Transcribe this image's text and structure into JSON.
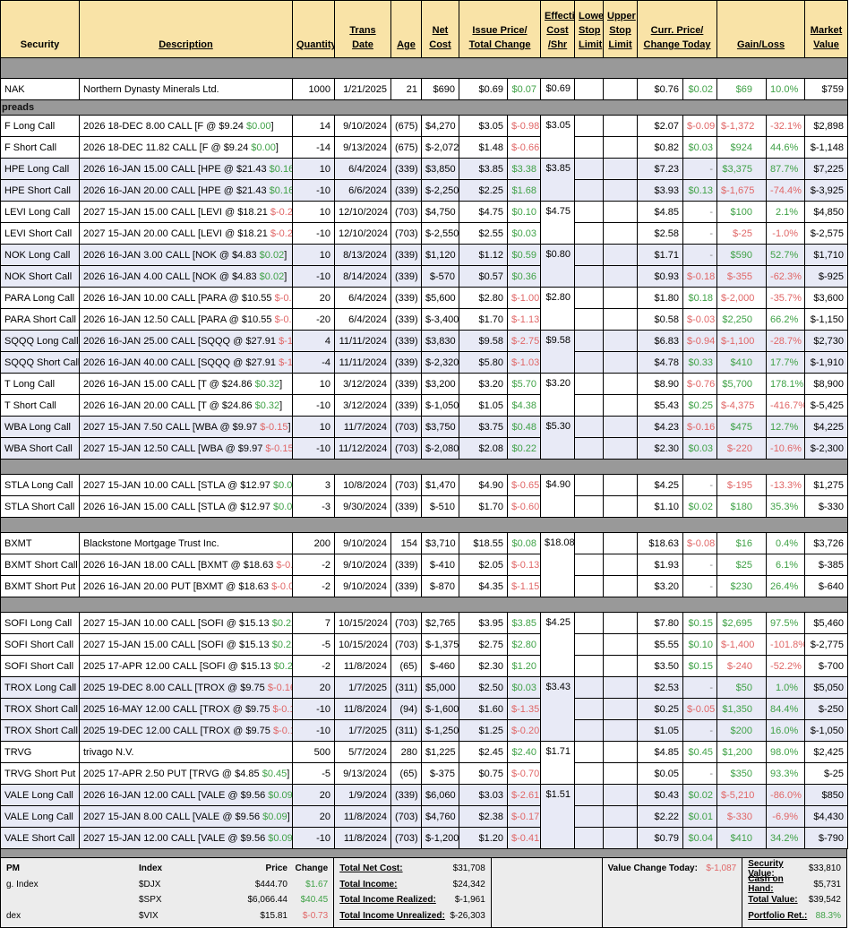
{
  "colors": {
    "header_bg": "#f9e3a7",
    "row_alt_bg": "#e8eaf6",
    "separator_bg": "#999999",
    "positive": "#3fa146",
    "negative": "#e06666",
    "footer_bg": "#ececec"
  },
  "header": [
    {
      "l": "Security",
      "c": 1,
      "u": false
    },
    {
      "l": "Description",
      "c": 1,
      "u": true
    },
    {
      "l": "Quantity",
      "c": 1,
      "u": true
    },
    {
      "l": "Trans\nDate",
      "c": 1,
      "u": true
    },
    {
      "l": "Age",
      "c": 1,
      "u": true
    },
    {
      "l": "Net\nCost",
      "c": 1,
      "u": true
    },
    {
      "l": "Issue Price/\nTotal Change",
      "c": 2,
      "u": true
    },
    {
      "l": "Effective\nCost\n/Shr",
      "c": 1,
      "u": true
    },
    {
      "l": "Lower\nStop\nLimit",
      "c": 1,
      "u": true
    },
    {
      "l": "Upper\nStop\nLimit",
      "c": 1,
      "u": true
    },
    {
      "l": "Curr. Price/\nChange Today",
      "c": 2,
      "u": true
    },
    {
      "l": "Gain/Loss",
      "c": 2,
      "u": true
    },
    {
      "l": "Market\nValue",
      "c": 1,
      "u": true
    }
  ],
  "rows": [
    {
      "k": "sep",
      "h": 22
    },
    {
      "k": "r",
      "sec": "NAK",
      "d": "Northern Dynasty Minerals Ltd.",
      "q": "1000",
      "dt": "1/21/2025",
      "age": "21",
      "net": "$690",
      "ip": "$0.69",
      "tc": "$0.07",
      "tcs": "p",
      "eff": "$0.69",
      "effspan": 1,
      "cp": "$0.76",
      "ct": "$0.02",
      "cts": "p",
      "g": "$69",
      "gs": "p",
      "pct": "10.0%",
      "mv": "$759",
      "alt": false
    },
    {
      "k": "band",
      "h": 16,
      "label": "preads"
    },
    {
      "k": "r",
      "sec": "F Long Call",
      "d": "2026 18-DEC 8.00 CALL [F @ $9.24 ",
      "dc": "$0.00",
      "dcs": "p",
      "q": "14",
      "dt": "9/10/2024",
      "age": "(675)",
      "net": "$4,270",
      "ip": "$3.05",
      "tc": "$-0.98",
      "tcs": "n",
      "eff": "$3.05",
      "effspan": 2,
      "cp": "$2.07",
      "ct": "$-0.09",
      "cts": "n",
      "g": "$-1,372",
      "gs": "n",
      "pct": "-32.1%",
      "mv": "$2,898",
      "alt": false
    },
    {
      "k": "r",
      "sec": "F Short Call",
      "d": "2026 18-DEC 11.82 CALL [F @ $9.24 ",
      "dc": "$0.00",
      "dcs": "p",
      "q": "-14",
      "dt": "9/13/2024",
      "age": "(675)",
      "net": "$-2,072",
      "ip": "$1.48",
      "tc": "$-0.66",
      "tcs": "n",
      "cp": "$0.82",
      "ct": "$0.03",
      "cts": "p",
      "g": "$924",
      "gs": "p",
      "pct": "44.6%",
      "mv": "$-1,148",
      "alt": false
    },
    {
      "k": "r",
      "sec": "HPE Long Call",
      "d": "2026 16-JAN 15.00 CALL [HPE @ $21.43 ",
      "dc": "$0.16",
      "dcs": "p",
      "q": "10",
      "dt": "6/4/2024",
      "age": "(339)",
      "net": "$3,850",
      "ip": "$3.85",
      "tc": "$3.38",
      "tcs": "p",
      "eff": "$3.85",
      "effspan": 2,
      "cp": "$7.23",
      "ct": "-",
      "cts": "d",
      "g": "$3,375",
      "gs": "p",
      "pct": "87.7%",
      "mv": "$7,225",
      "alt": true
    },
    {
      "k": "r",
      "sec": "HPE Short Call",
      "d": "2026 16-JAN 20.00 CALL [HPE @ $21.43 ",
      "dc": "$0.16",
      "dcs": "p",
      "q": "-10",
      "dt": "6/6/2024",
      "age": "(339)",
      "net": "$-2,250",
      "ip": "$2.25",
      "tc": "$1.68",
      "tcs": "p",
      "cp": "$3.93",
      "ct": "$0.13",
      "cts": "p",
      "g": "$-1,675",
      "gs": "n",
      "pct": "-74.4%",
      "mv": "$-3,925",
      "alt": true
    },
    {
      "k": "r",
      "sec": "LEVI Long Call",
      "d": "2027 15-JAN 15.00 CALL [LEVI @ $18.21 ",
      "dc": "$-0.23",
      "dcs": "n",
      "q": "10",
      "dt": "12/10/2024",
      "age": "(703)",
      "net": "$4,750",
      "ip": "$4.75",
      "tc": "$0.10",
      "tcs": "p",
      "eff": "$4.75",
      "effspan": 2,
      "cp": "$4.85",
      "ct": "-",
      "cts": "d",
      "g": "$100",
      "gs": "p",
      "pct": "2.1%",
      "mv": "$4,850",
      "alt": false
    },
    {
      "k": "r",
      "sec": "LEVI Short Call",
      "d": "2027 15-JAN 20.00 CALL [LEVI @ $18.21 ",
      "dc": "$-0.23",
      "dcs": "n",
      "q": "-10",
      "dt": "12/10/2024",
      "age": "(703)",
      "net": "$-2,550",
      "ip": "$2.55",
      "tc": "$0.03",
      "tcs": "p",
      "cp": "$2.58",
      "ct": "-",
      "cts": "d",
      "g": "$-25",
      "gs": "n",
      "pct": "-1.0%",
      "mv": "$-2,575",
      "alt": false
    },
    {
      "k": "r",
      "sec": "NOK Long Call",
      "d": "2026 16-JAN 3.00 CALL [NOK @ $4.83 ",
      "dc": "$0.02",
      "dcs": "p",
      "q": "10",
      "dt": "8/13/2024",
      "age": "(339)",
      "net": "$1,120",
      "ip": "$1.12",
      "tc": "$0.59",
      "tcs": "p",
      "eff": "$0.80",
      "effspan": 2,
      "cp": "$1.71",
      "ct": "-",
      "cts": "d",
      "g": "$590",
      "gs": "p",
      "pct": "52.7%",
      "mv": "$1,710",
      "alt": true
    },
    {
      "k": "r",
      "sec": "NOK Short Call",
      "d": "2026 16-JAN 4.00 CALL [NOK @ $4.83 ",
      "dc": "$0.02",
      "dcs": "p",
      "q": "-10",
      "dt": "8/14/2024",
      "age": "(339)",
      "net": "$-570",
      "ip": "$0.57",
      "tc": "$0.36",
      "tcs": "p",
      "cp": "$0.93",
      "ct": "$-0.18",
      "cts": "n",
      "g": "$-355",
      "gs": "n",
      "pct": "-62.3%",
      "mv": "$-925",
      "alt": true
    },
    {
      "k": "r",
      "sec": "PARA Long Call",
      "d": "2026 16-JAN 10.00 CALL [PARA @ $10.55 ",
      "dc": "$-0.08",
      "dcs": "n",
      "q": "20",
      "dt": "6/4/2024",
      "age": "(339)",
      "net": "$5,600",
      "ip": "$2.80",
      "tc": "$-1.00",
      "tcs": "n",
      "eff": "$2.80",
      "effspan": 2,
      "cp": "$1.80",
      "ct": "$0.18",
      "cts": "p",
      "g": "$-2,000",
      "gs": "n",
      "pct": "-35.7%",
      "mv": "$3,600",
      "alt": false
    },
    {
      "k": "r",
      "sec": "PARA Short Call",
      "d": "2026 16-JAN 12.50 CALL [PARA @ $10.55 ",
      "dc": "$-0.08",
      "dcs": "n",
      "q": "-20",
      "dt": "6/4/2024",
      "age": "(339)",
      "net": "$-3,400",
      "ip": "$1.70",
      "tc": "$-1.13",
      "tcs": "n",
      "cp": "$0.58",
      "ct": "$-0.03",
      "cts": "n",
      "g": "$2,250",
      "gs": "p",
      "pct": "66.2%",
      "mv": "$-1,150",
      "alt": false
    },
    {
      "k": "r",
      "sec": "SQQQ Long Call",
      "d": "2026 16-JAN 25.00 CALL [SQQQ @ $27.91 ",
      "dc": "$-1.02",
      "dcs": "n",
      "q": "4",
      "dt": "11/11/2024",
      "age": "(339)",
      "net": "$3,830",
      "ip": "$9.58",
      "tc": "$-2.75",
      "tcs": "n",
      "eff": "$9.58",
      "effspan": 2,
      "cp": "$6.83",
      "ct": "$-0.94",
      "cts": "n",
      "g": "$-1,100",
      "gs": "n",
      "pct": "-28.7%",
      "mv": "$2,730",
      "alt": true
    },
    {
      "k": "r",
      "sec": "SQQQ Short Call",
      "d": "2026 16-JAN 40.00 CALL [SQQQ @ $27.91 ",
      "dc": "$-1.02",
      "dcs": "n",
      "q": "-4",
      "dt": "11/11/2024",
      "age": "(339)",
      "net": "$-2,320",
      "ip": "$5.80",
      "tc": "$-1.03",
      "tcs": "n",
      "cp": "$4.78",
      "ct": "$0.33",
      "cts": "p",
      "g": "$410",
      "gs": "p",
      "pct": "17.7%",
      "mv": "$-1,910",
      "alt": true
    },
    {
      "k": "r",
      "sec": "T Long Call",
      "d": "2026 16-JAN 15.00 CALL [T @ $24.86 ",
      "dc": "$0.32",
      "dcs": "p",
      "q": "10",
      "dt": "3/12/2024",
      "age": "(339)",
      "net": "$3,200",
      "ip": "$3.20",
      "tc": "$5.70",
      "tcs": "p",
      "eff": "$3.20",
      "effspan": 2,
      "cp": "$8.90",
      "ct": "$-0.76",
      "cts": "n",
      "g": "$5,700",
      "gs": "p",
      "pct": "178.1%",
      "mv": "$8,900",
      "alt": false
    },
    {
      "k": "r",
      "sec": "T Short Call",
      "d": "2026 16-JAN 20.00 CALL [T @ $24.86 ",
      "dc": "$0.32",
      "dcs": "p",
      "q": "-10",
      "dt": "3/12/2024",
      "age": "(339)",
      "net": "$-1,050",
      "ip": "$1.05",
      "tc": "$4.38",
      "tcs": "p",
      "cp": "$5.43",
      "ct": "$0.25",
      "cts": "p",
      "g": "$-4,375",
      "gs": "n",
      "pct": "-416.7%",
      "mv": "$-5,425",
      "alt": false
    },
    {
      "k": "r",
      "sec": "WBA Long Call",
      "d": "2027 15-JAN 7.50 CALL [WBA @ $9.97 ",
      "dc": "$-0.15",
      "dcs": "n",
      "q": "10",
      "dt": "11/7/2024",
      "age": "(703)",
      "net": "$3,750",
      "ip": "$3.75",
      "tc": "$0.48",
      "tcs": "p",
      "eff": "$5.30",
      "effspan": 2,
      "cp": "$4.23",
      "ct": "$-0.16",
      "cts": "n",
      "g": "$475",
      "gs": "p",
      "pct": "12.7%",
      "mv": "$4,225",
      "alt": true
    },
    {
      "k": "r",
      "sec": "WBA Short Call",
      "d": "2027 15-JAN 12.50 CALL [WBA @ $9.97 ",
      "dc": "$-0.15",
      "dcs": "n",
      "q": "-10",
      "dt": "11/12/2024",
      "age": "(703)",
      "net": "$-2,080",
      "ip": "$2.08",
      "tc": "$0.22",
      "tcs": "p",
      "cp": "$2.30",
      "ct": "$0.03",
      "cts": "p",
      "g": "$-220",
      "gs": "n",
      "pct": "-10.6%",
      "mv": "$-2,300",
      "alt": true
    },
    {
      "k": "sep",
      "h": 16
    },
    {
      "k": "r",
      "sec": "STLA Long Call",
      "d": "2027 15-JAN 10.00 CALL [STLA @ $12.97 ",
      "dc": "$0.03",
      "dcs": "p",
      "q": "3",
      "dt": "10/8/2024",
      "age": "(703)",
      "net": "$1,470",
      "ip": "$4.90",
      "tc": "$-0.65",
      "tcs": "n",
      "eff": "$4.90",
      "effspan": 2,
      "cp": "$4.25",
      "ct": "-",
      "cts": "d",
      "g": "$-195",
      "gs": "n",
      "pct": "-13.3%",
      "mv": "$1,275",
      "alt": false
    },
    {
      "k": "r",
      "sec": "STLA Short Call",
      "d": "2026 16-JAN 15.00 CALL [STLA @ $12.97 ",
      "dc": "$0.03",
      "dcs": "p",
      "q": "-3",
      "dt": "9/30/2024",
      "age": "(339)",
      "net": "$-510",
      "ip": "$1.70",
      "tc": "$-0.60",
      "tcs": "n",
      "cp": "$1.10",
      "ct": "$0.02",
      "cts": "p",
      "g": "$180",
      "gs": "p",
      "pct": "35.3%",
      "mv": "$-330",
      "alt": false
    },
    {
      "k": "sep",
      "h": 16
    },
    {
      "k": "r",
      "sec": "BXMT",
      "d": "Blackstone Mortgage Trust Inc.",
      "q": "200",
      "dt": "9/10/2024",
      "age": "154",
      "net": "$3,710",
      "ip": "$18.55",
      "tc": "$0.08",
      "tcs": "p",
      "eff": "$18.08",
      "effspan": 3,
      "cp": "$18.63",
      "ct": "$-0.08",
      "cts": "n",
      "g": "$16",
      "gs": "p",
      "pct": "0.4%",
      "mv": "$3,726",
      "alt": false
    },
    {
      "k": "r",
      "sec": "BXMT Short Call",
      "d": "2026 16-JAN 18.00 CALL [BXMT @ $18.63 ",
      "dc": "$-0.08",
      "dcs": "n",
      "q": "-2",
      "dt": "9/10/2024",
      "age": "(339)",
      "net": "$-410",
      "ip": "$2.05",
      "tc": "$-0.13",
      "tcs": "n",
      "cp": "$1.93",
      "ct": "-",
      "cts": "d",
      "g": "$25",
      "gs": "p",
      "pct": "6.1%",
      "mv": "$-385",
      "alt": false
    },
    {
      "k": "r",
      "sec": "BXMT Short Put",
      "d": "2026 16-JAN 20.00 PUT [BXMT @ $18.63 ",
      "dc": "$-0.08",
      "dcs": "n",
      "q": "-2",
      "dt": "9/10/2024",
      "age": "(339)",
      "net": "$-870",
      "ip": "$4.35",
      "tc": "$-1.15",
      "tcs": "n",
      "cp": "$3.20",
      "ct": "-",
      "cts": "d",
      "g": "$230",
      "gs": "p",
      "pct": "26.4%",
      "mv": "$-640",
      "alt": false
    },
    {
      "k": "sep",
      "h": 16
    },
    {
      "k": "r",
      "sec": "SOFI Long Call",
      "d": "2027 15-JAN 10.00 CALL [SOFI @ $15.13 ",
      "dc": "$0.22",
      "dcs": "p",
      "q": "7",
      "dt": "10/15/2024",
      "age": "(703)",
      "net": "$2,765",
      "ip": "$3.95",
      "tc": "$3.85",
      "tcs": "p",
      "eff": "$4.25",
      "effspan": 3,
      "cp": "$7.80",
      "ct": "$0.15",
      "cts": "p",
      "g": "$2,695",
      "gs": "p",
      "pct": "97.5%",
      "mv": "$5,460",
      "alt": false
    },
    {
      "k": "r",
      "sec": "SOFI Short Call",
      "d": "2027 15-JAN 15.00 CALL [SOFI @ $15.13 ",
      "dc": "$0.22",
      "dcs": "p",
      "q": "-5",
      "dt": "10/15/2024",
      "age": "(703)",
      "net": "$-1,375",
      "ip": "$2.75",
      "tc": "$2.80",
      "tcs": "p",
      "cp": "$5.55",
      "ct": "$0.10",
      "cts": "p",
      "g": "$-1,400",
      "gs": "n",
      "pct": "-101.8%",
      "mv": "$-2,775",
      "alt": false
    },
    {
      "k": "r",
      "sec": "SOFI Short Call",
      "d": "2025 17-APR 12.00 CALL [SOFI @ $15.13 ",
      "dc": "$0.22",
      "dcs": "p",
      "q": "-2",
      "dt": "11/8/2024",
      "age": "(65)",
      "net": "$-460",
      "ip": "$2.30",
      "tc": "$1.20",
      "tcs": "p",
      "cp": "$3.50",
      "ct": "$0.15",
      "cts": "p",
      "g": "$-240",
      "gs": "n",
      "pct": "-52.2%",
      "mv": "$-700",
      "alt": false
    },
    {
      "k": "r",
      "sec": "TROX Long Call",
      "d": "2025 19-DEC 8.00 CALL [TROX @ $9.75 ",
      "dc": "$-0.16",
      "dcs": "n",
      "q": "20",
      "dt": "1/7/2025",
      "age": "(311)",
      "net": "$5,000",
      "ip": "$2.50",
      "tc": "$0.03",
      "tcs": "p",
      "eff": "$3.43",
      "effspan": 3,
      "cp": "$2.53",
      "ct": "-",
      "cts": "d",
      "g": "$50",
      "gs": "p",
      "pct": "1.0%",
      "mv": "$5,050",
      "alt": true
    },
    {
      "k": "r",
      "sec": "TROX Short Call",
      "d": "2025 16-MAY 12.00 CALL [TROX @ $9.75 ",
      "dc": "$-0.16",
      "dcs": "n",
      "q": "-10",
      "dt": "11/8/2024",
      "age": "(94)",
      "net": "$-1,600",
      "ip": "$1.60",
      "tc": "$-1.35",
      "tcs": "n",
      "cp": "$0.25",
      "ct": "$-0.05",
      "cts": "n",
      "g": "$1,350",
      "gs": "p",
      "pct": "84.4%",
      "mv": "$-250",
      "alt": true
    },
    {
      "k": "r",
      "sec": "TROX Short Call",
      "d": "2025 19-DEC 12.00 CALL [TROX @ $9.75 ",
      "dc": "$-0.16",
      "dcs": "n",
      "q": "-10",
      "dt": "1/7/2025",
      "age": "(311)",
      "net": "$-1,250",
      "ip": "$1.25",
      "tc": "$-0.20",
      "tcs": "n",
      "cp": "$1.05",
      "ct": "-",
      "cts": "d",
      "g": "$200",
      "gs": "p",
      "pct": "16.0%",
      "mv": "$-1,050",
      "alt": true
    },
    {
      "k": "r",
      "sec": "TRVG",
      "d": "trivago N.V.",
      "q": "500",
      "dt": "5/7/2024",
      "age": "280",
      "net": "$1,225",
      "ip": "$2.45",
      "tc": "$2.40",
      "tcs": "p",
      "eff": "$1.71",
      "effspan": 2,
      "cp": "$4.85",
      "ct": "$0.45",
      "cts": "p",
      "g": "$1,200",
      "gs": "p",
      "pct": "98.0%",
      "mv": "$2,425",
      "alt": false
    },
    {
      "k": "r",
      "sec": "TRVG Short Put",
      "d": "2025 17-APR 2.50 PUT [TRVG @ $4.85 ",
      "dc": "$0.45",
      "dcs": "p",
      "q": "-5",
      "dt": "9/13/2024",
      "age": "(65)",
      "net": "$-375",
      "ip": "$0.75",
      "tc": "$-0.70",
      "tcs": "n",
      "cp": "$0.05",
      "ct": "-",
      "cts": "d",
      "g": "$350",
      "gs": "p",
      "pct": "93.3%",
      "mv": "$-25",
      "alt": false
    },
    {
      "k": "r",
      "sec": "VALE Long Call",
      "d": "2026 16-JAN 12.00 CALL [VALE @ $9.56 ",
      "dc": "$0.09",
      "dcs": "p",
      "q": "20",
      "dt": "1/9/2024",
      "age": "(339)",
      "net": "$6,060",
      "ip": "$3.03",
      "tc": "$-2.61",
      "tcs": "n",
      "eff": "$1.51",
      "effspan": 3,
      "cp": "$0.43",
      "ct": "$0.02",
      "cts": "p",
      "g": "$-5,210",
      "gs": "n",
      "pct": "-86.0%",
      "mv": "$850",
      "alt": true
    },
    {
      "k": "r",
      "sec": "VALE Long Call",
      "d": "2027 15-JAN 8.00 CALL [VALE @ $9.56 ",
      "dc": "$0.09",
      "dcs": "p",
      "q": "20",
      "dt": "11/8/2024",
      "age": "(703)",
      "net": "$4,760",
      "ip": "$2.38",
      "tc": "$-0.17",
      "tcs": "n",
      "cp": "$2.22",
      "ct": "$0.01",
      "cts": "p",
      "g": "$-330",
      "gs": "n",
      "pct": "-6.9%",
      "mv": "$4,430",
      "alt": true
    },
    {
      "k": "r",
      "sec": "VALE Short Call",
      "d": "2027 15-JAN 12.00 CALL [VALE @ $9.56 ",
      "dc": "$0.09",
      "dcs": "p",
      "q": "-10",
      "dt": "11/8/2024",
      "age": "(703)",
      "net": "$-1,200",
      "ip": "$1.20",
      "tc": "$-0.41",
      "tcs": "n",
      "cp": "$0.79",
      "ct": "$0.04",
      "cts": "p",
      "g": "$410",
      "gs": "p",
      "pct": "34.2%",
      "mv": "$-790",
      "alt": true
    }
  ],
  "footer": {
    "index_block": {
      "corner": "PM",
      "headers": [
        "Index",
        "Price",
        "Change"
      ],
      "rows": [
        {
          "label": "g. Index",
          "index": "$DJX",
          "price": "$444.70",
          "change": "$1.67",
          "sign": "p"
        },
        {
          "label": "",
          "index": "$SPX",
          "price": "$6,066.44",
          "change": "$40.45",
          "sign": "p"
        },
        {
          "label": "dex",
          "index": "$VIX",
          "price": "$15.81",
          "change": "$-0.73",
          "sign": "n"
        }
      ]
    },
    "totals": [
      {
        "label": "Total Net Cost:",
        "value": "$31,708"
      },
      {
        "label": "Total Income:",
        "value": "$24,342"
      },
      {
        "label": "Total Income Realized:",
        "value": "$-1,961"
      },
      {
        "label": "Total Income Unrealized:",
        "value": "$-26,303"
      }
    ],
    "value_change": {
      "label": "Value Change Today:",
      "value": "$-1,087",
      "sign": "n"
    },
    "summary": [
      {
        "label": "Security Value:",
        "value": "$33,810",
        "sign": ""
      },
      {
        "label": "Cash on Hand:",
        "value": "$5,731",
        "sign": ""
      },
      {
        "label": "Total Value:",
        "value": "$39,542",
        "sign": ""
      },
      {
        "label": "Portfolio Ret.:",
        "value": "88.3%",
        "sign": "p"
      }
    ]
  }
}
